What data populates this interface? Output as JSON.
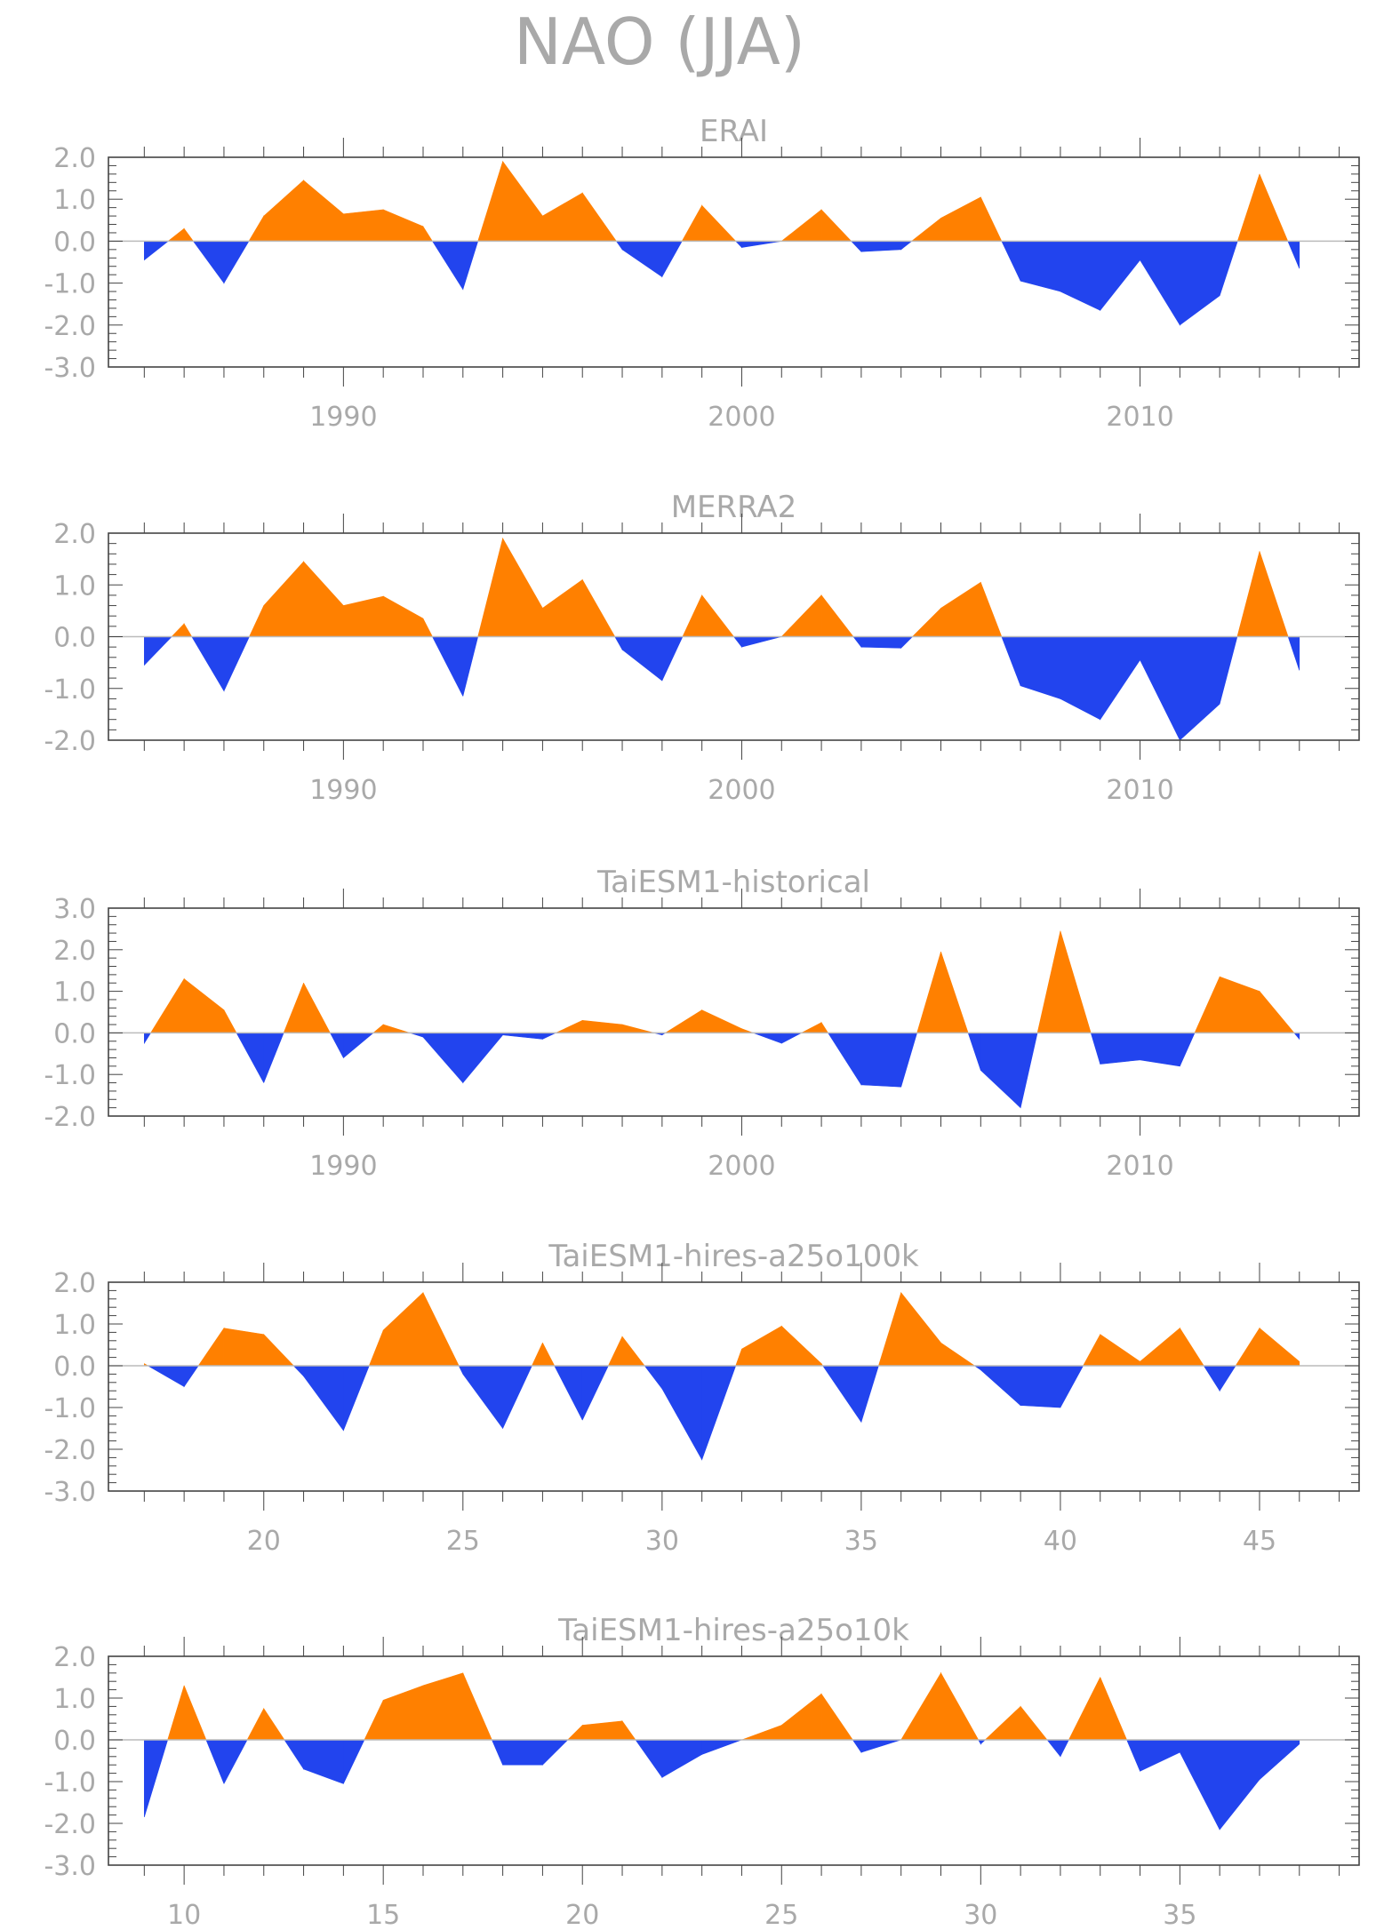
{
  "title": "NAO (JJA)",
  "colors": {
    "positive": "#ff8000",
    "negative": "#2244ee",
    "axis": "#444444",
    "text": "#a9a9a9"
  },
  "chart_data": [
    {
      "type": "area",
      "title": "ERAI",
      "xlim": [
        1984.1,
        2015.5
      ],
      "ylim": [
        -3,
        2
      ],
      "yticks": [
        2,
        1,
        0,
        -1,
        -2,
        -3
      ],
      "ytick_labels": [
        "2.0",
        "1.0",
        "0.0",
        "-1.0",
        "-2.0",
        "-3.0"
      ],
      "xticks": [
        1990,
        2000,
        2010
      ],
      "xtick_labels": [
        "1990",
        "2000",
        "2010"
      ],
      "x": [
        1985,
        1986,
        1987,
        1988,
        1989,
        1990,
        1991,
        1992,
        1993,
        1994,
        1995,
        1996,
        1997,
        1998,
        1999,
        2000,
        2001,
        2002,
        2003,
        2004,
        2005,
        2006,
        2007,
        2008,
        2009,
        2010,
        2011,
        2012,
        2013,
        2014
      ],
      "values": [
        -0.45,
        0.3,
        -1.0,
        0.6,
        1.45,
        0.65,
        0.75,
        0.35,
        -1.15,
        1.9,
        0.6,
        1.15,
        -0.2,
        -0.85,
        0.85,
        -0.15,
        0.0,
        0.75,
        -0.25,
        -0.2,
        0.55,
        1.05,
        -0.95,
        -1.2,
        -1.65,
        -0.45,
        -2.0,
        -1.3,
        1.6,
        -0.65
      ]
    },
    {
      "type": "area",
      "title": "MERRA2",
      "xlim": [
        1984.1,
        2015.5
      ],
      "ylim": [
        -2,
        2
      ],
      "yticks": [
        2,
        1,
        0,
        -1,
        -2
      ],
      "ytick_labels": [
        "2.0",
        "1.0",
        "0.0",
        "-1.0",
        "-2.0"
      ],
      "xticks": [
        1990,
        2000,
        2010
      ],
      "xtick_labels": [
        "1990",
        "2000",
        "2010"
      ],
      "x": [
        1985,
        1986,
        1987,
        1988,
        1989,
        1990,
        1991,
        1992,
        1993,
        1994,
        1995,
        1996,
        1997,
        1998,
        1999,
        2000,
        2001,
        2002,
        2003,
        2004,
        2005,
        2006,
        2007,
        2008,
        2009,
        2010,
        2011,
        2012,
        2013,
        2014
      ],
      "values": [
        -0.55,
        0.25,
        -1.05,
        0.6,
        1.45,
        0.6,
        0.78,
        0.35,
        -1.15,
        1.9,
        0.55,
        1.1,
        -0.25,
        -0.85,
        0.8,
        -0.2,
        0.0,
        0.8,
        -0.2,
        -0.22,
        0.55,
        1.05,
        -0.95,
        -1.2,
        -1.6,
        -0.45,
        -2.0,
        -1.3,
        1.65,
        -0.65
      ]
    },
    {
      "type": "area",
      "title": "TaiESM1-historical",
      "xlim": [
        1984.1,
        2015.5
      ],
      "ylim": [
        -2,
        3
      ],
      "yticks": [
        3,
        2,
        1,
        0,
        -1,
        -2
      ],
      "ytick_labels": [
        "3.0",
        "2.0",
        "1.0",
        "0.0",
        "-1.0",
        "-2.0"
      ],
      "xticks": [
        1990,
        2000,
        2010
      ],
      "xtick_labels": [
        "1990",
        "2000",
        "2010"
      ],
      "x": [
        1985,
        1986,
        1987,
        1988,
        1989,
        1990,
        1991,
        1992,
        1993,
        1994,
        1995,
        1996,
        1997,
        1998,
        1999,
        2000,
        2001,
        2002,
        2003,
        2004,
        2005,
        2006,
        2007,
        2008,
        2009,
        2010,
        2011,
        2012,
        2013,
        2014
      ],
      "values": [
        -0.25,
        1.3,
        0.55,
        -1.2,
        1.2,
        -0.6,
        0.2,
        -0.1,
        -1.2,
        -0.05,
        -0.15,
        0.3,
        0.2,
        -0.05,
        0.55,
        0.1,
        -0.25,
        0.25,
        -1.25,
        -1.3,
        1.95,
        -0.9,
        -1.8,
        2.45,
        -0.75,
        -0.65,
        -0.8,
        1.35,
        1.0,
        -0.15
      ]
    },
    {
      "type": "area",
      "title": "TaiESM1-hires-a25o100k",
      "xlim": [
        16.1,
        47.5
      ],
      "ylim": [
        -3,
        2
      ],
      "yticks": [
        2,
        1,
        0,
        -1,
        -2,
        -3
      ],
      "ytick_labels": [
        "2.0",
        "1.0",
        "0.0",
        "-1.0",
        "-2.0",
        "-3.0"
      ],
      "xticks": [
        20,
        25,
        30,
        35,
        40,
        45
      ],
      "xtick_labels": [
        "20",
        "25",
        "30",
        "35",
        "40",
        "45"
      ],
      "x": [
        17,
        18,
        19,
        20,
        21,
        22,
        23,
        24,
        25,
        26,
        27,
        28,
        29,
        30,
        31,
        32,
        33,
        34,
        35,
        36,
        37,
        38,
        39,
        40,
        41,
        42,
        43,
        44,
        45,
        46
      ],
      "values": [
        0.05,
        -0.5,
        0.9,
        0.75,
        -0.25,
        -1.55,
        0.85,
        1.75,
        -0.2,
        -1.5,
        0.55,
        -1.3,
        0.7,
        -0.55,
        -2.25,
        0.4,
        0.95,
        0.05,
        -1.35,
        1.75,
        0.55,
        -0.1,
        -0.95,
        -1.0,
        0.75,
        0.1,
        0.9,
        -0.6,
        0.9,
        0.1
      ]
    },
    {
      "type": "area",
      "title": "TaiESM1-hires-a25o10k",
      "xlim": [
        8.1,
        39.5
      ],
      "ylim": [
        -3,
        2
      ],
      "yticks": [
        2,
        1,
        0,
        -1,
        -2,
        -3
      ],
      "ytick_labels": [
        "2.0",
        "1.0",
        "0.0",
        "-1.0",
        "-2.0",
        "-3.0"
      ],
      "xticks": [
        10,
        15,
        20,
        25,
        30,
        35
      ],
      "xtick_labels": [
        "10",
        "15",
        "20",
        "25",
        "30",
        "35"
      ],
      "x": [
        9,
        10,
        11,
        12,
        13,
        14,
        15,
        16,
        17,
        18,
        19,
        20,
        21,
        22,
        23,
        24,
        25,
        26,
        27,
        28,
        29,
        30,
        31,
        32,
        33,
        34,
        35,
        36,
        37,
        38
      ],
      "values": [
        -1.85,
        1.3,
        -1.05,
        0.75,
        -0.7,
        -1.05,
        0.95,
        1.3,
        1.6,
        -0.6,
        -0.6,
        0.35,
        0.45,
        -0.9,
        -0.35,
        0.0,
        0.35,
        1.1,
        -0.3,
        0.0,
        1.6,
        -0.1,
        0.8,
        -0.4,
        1.5,
        -0.75,
        -0.3,
        -2.15,
        -0.95,
        -0.1
      ]
    }
  ]
}
